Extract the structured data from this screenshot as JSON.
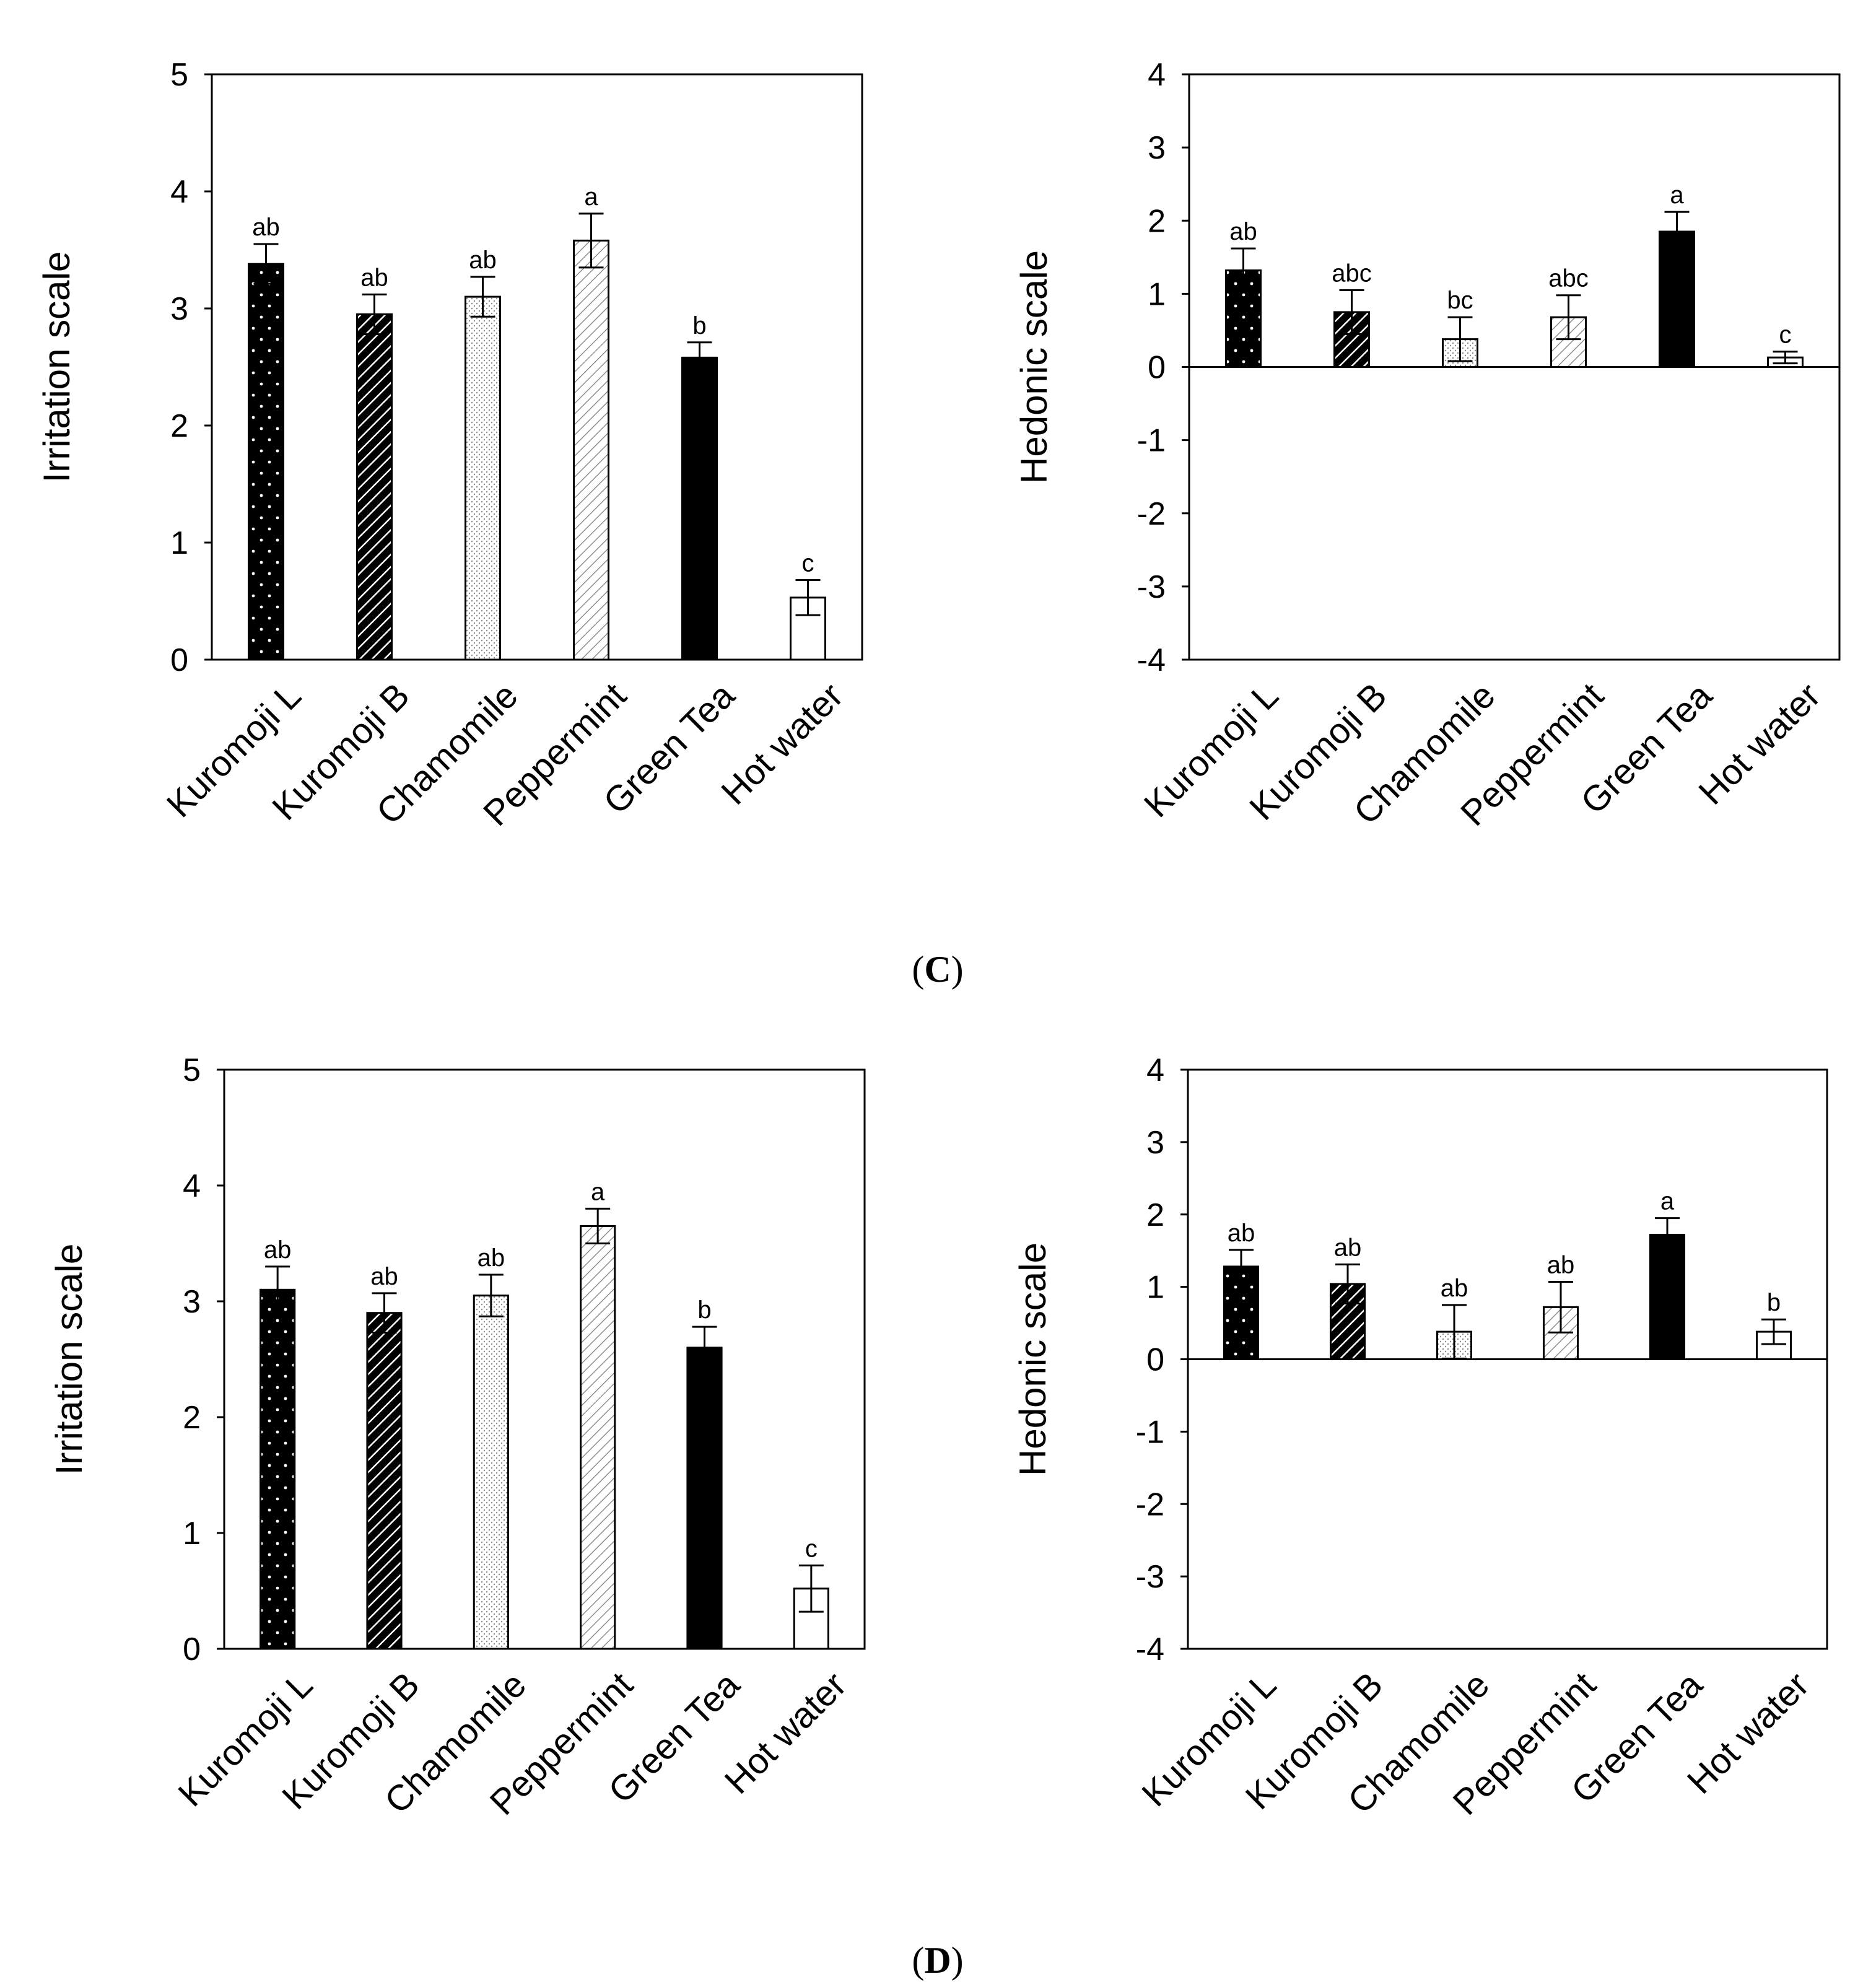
{
  "figure": {
    "panel_labels": [
      {
        "open": "(",
        "letter": "C",
        "close": ")"
      },
      {
        "open": "(",
        "letter": "D",
        "close": ")"
      }
    ]
  },
  "colors": {
    "black": "#000000",
    "white": "#ffffff"
  },
  "chart_data": [
    {
      "type": "bar",
      "panel": "C",
      "xlabel": "",
      "ylabel": "Irritation scale",
      "ylim": [
        0,
        5
      ],
      "yticks": [
        0,
        1,
        2,
        3,
        4,
        5
      ],
      "categories": [
        "Kuromoji L",
        "Kuromoji B",
        "Chamomile",
        "Peppermint",
        "Green Tea",
        "Hot water"
      ],
      "values": [
        3.38,
        2.95,
        3.1,
        3.58,
        2.58,
        0.53
      ],
      "errors": [
        0.17,
        0.17,
        0.17,
        0.23,
        0.13,
        0.15
      ],
      "significance": [
        "ab",
        "ab",
        "ab",
        "a",
        "b",
        "c"
      ]
    },
    {
      "type": "bar",
      "panel": "C",
      "xlabel": "",
      "ylabel": "Hedonic scale",
      "ylim": [
        -4,
        4
      ],
      "yticks": [
        -4,
        -3,
        -2,
        -1,
        0,
        1,
        2,
        3,
        4
      ],
      "categories": [
        "Kuromoji L",
        "Kuromoji B",
        "Chamomile",
        "Peppermint",
        "Green Tea",
        "Hot water"
      ],
      "values": [
        1.32,
        0.75,
        0.38,
        0.68,
        1.85,
        0.13
      ],
      "errors": [
        0.3,
        0.3,
        0.3,
        0.3,
        0.27,
        0.08
      ],
      "significance": [
        "ab",
        "abc",
        "bc",
        "abc",
        "a",
        "c"
      ]
    },
    {
      "type": "bar",
      "panel": "D",
      "xlabel": "",
      "ylabel": "Irritation scale",
      "ylim": [
        0,
        5
      ],
      "yticks": [
        0,
        1,
        2,
        3,
        4,
        5
      ],
      "categories": [
        "Kuromoji L",
        "Kuromoji B",
        "Chamomile",
        "Peppermint",
        "Green Tea",
        "Hot water"
      ],
      "values": [
        3.1,
        2.9,
        3.05,
        3.65,
        2.6,
        0.52
      ],
      "errors": [
        0.2,
        0.17,
        0.18,
        0.15,
        0.18,
        0.2
      ],
      "significance": [
        "ab",
        "ab",
        "ab",
        "a",
        "b",
        "c"
      ]
    },
    {
      "type": "bar",
      "panel": "D",
      "xlabel": "",
      "ylabel": "Hedonic scale",
      "ylim": [
        -4,
        4
      ],
      "yticks": [
        -4,
        -3,
        -2,
        -1,
        0,
        1,
        2,
        3,
        4
      ],
      "categories": [
        "Kuromoji L",
        "Kuromoji B",
        "Chamomile",
        "Peppermint",
        "Green Tea",
        "Hot water"
      ],
      "values": [
        1.28,
        1.04,
        0.38,
        0.72,
        1.72,
        0.38
      ],
      "errors": [
        0.23,
        0.27,
        0.37,
        0.35,
        0.23,
        0.17
      ],
      "significance": [
        "ab",
        "ab",
        "ab",
        "ab",
        "a",
        "b"
      ]
    }
  ]
}
